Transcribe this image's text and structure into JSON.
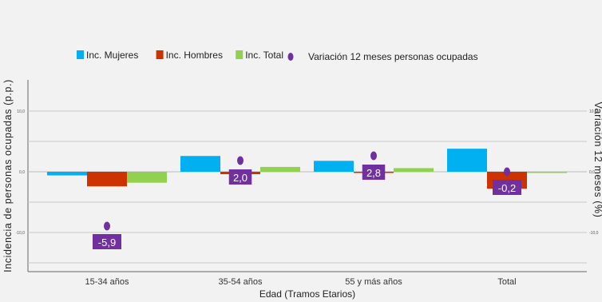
{
  "chart_data": {
    "type": "bar",
    "categories": [
      "15-34 años",
      "35-54 años",
      "55 y más años",
      "Total"
    ],
    "series": [
      {
        "name": "Inc. Mujeres",
        "color": "#00b0f0",
        "values": [
          -0.6,
          2.6,
          1.8,
          3.8
        ]
      },
      {
        "name": "Inc. Hombres",
        "color": "#cc3300",
        "values": [
          -2.4,
          -0.4,
          -0.1,
          -2.8
        ]
      },
      {
        "name": "Inc. Total",
        "color": "#92d050",
        "values": [
          -1.8,
          0.8,
          0.6,
          -0.1
        ]
      }
    ],
    "variation": {
      "name": "Variación 12 meses personas ocupadas",
      "color": "#7030a0",
      "values": [
        -5.9,
        2.0,
        2.8,
        -0.2
      ],
      "labels": [
        "-5,9",
        "2,0",
        "2,8",
        "-0,2"
      ]
    },
    "xlabel": "Edad (Tramos Etarios)",
    "ylabel": "Incidencia de personas ocupadas (p.p.)",
    "y2label": "Variación 12 meses (%)",
    "y_ticks": [
      "10,0",
      "0,0",
      "-10,0"
    ],
    "y2_ticks": [
      "10,0",
      "0,0",
      "-10,0"
    ],
    "ylim": [
      -15,
      15
    ],
    "grid": true,
    "legend_position": "top"
  }
}
